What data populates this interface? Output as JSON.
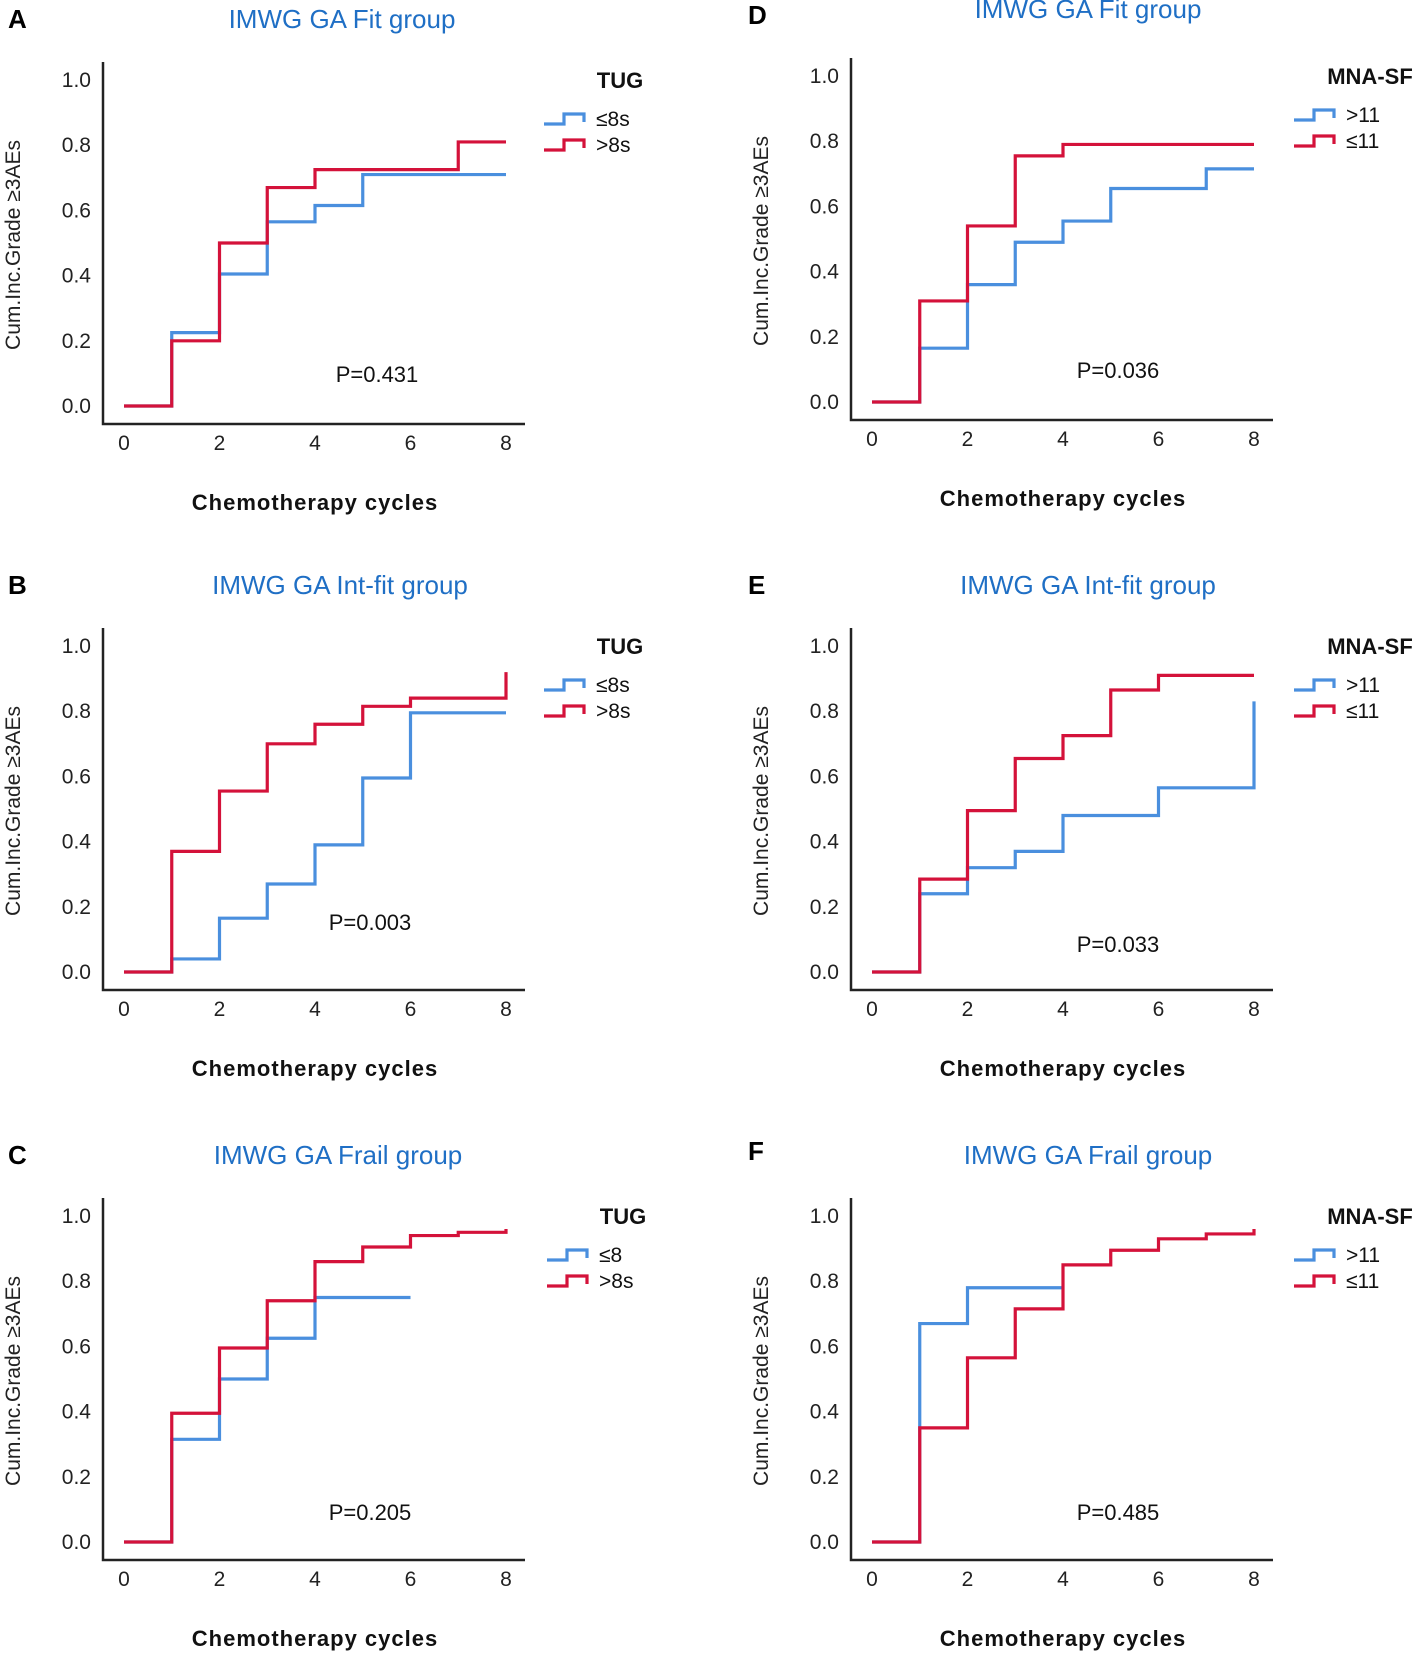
{
  "colors": {
    "blue": "#4a8fde",
    "red": "#d4123a",
    "title": "#1f6fc5"
  },
  "chart_data": [
    {
      "panel": "A",
      "type": "line",
      "step": true,
      "title": "IMWG GA Fit group",
      "xlabel": "Chemotherapy cycles",
      "ylabel": "Cum.Inc.Grade ≥3AEs",
      "xlim": [
        0,
        8
      ],
      "ylim": [
        0,
        1
      ],
      "xticks": [
        "0",
        "2",
        "4",
        "6",
        "8"
      ],
      "yticks": [
        "0.0",
        "0.2",
        "0.4",
        "0.6",
        "0.8",
        "1.0"
      ],
      "pvalue": "P=0.431",
      "legend": {
        "title": "TUG"
      },
      "series": [
        {
          "name": "≤8s",
          "color": "blue",
          "x": [
            0,
            1,
            2,
            3,
            4,
            5,
            8
          ],
          "y": [
            0,
            0.225,
            0.405,
            0.565,
            0.615,
            0.71,
            0.71
          ]
        },
        {
          "name": ">8s",
          "color": "red",
          "x": [
            0,
            1,
            2,
            3,
            4,
            7,
            8
          ],
          "y": [
            0,
            0.2,
            0.5,
            0.67,
            0.725,
            0.81,
            0.81
          ]
        }
      ]
    },
    {
      "panel": "B",
      "type": "line",
      "step": true,
      "title": "IMWG GA Int-fit group",
      "xlabel": "Chemotherapy cycles",
      "ylabel": "Cum.Inc.Grade ≥3AEs",
      "xlim": [
        0,
        8
      ],
      "ylim": [
        0,
        1
      ],
      "xticks": [
        "0",
        "2",
        "4",
        "6",
        "8"
      ],
      "yticks": [
        "0.0",
        "0.2",
        "0.4",
        "0.6",
        "0.8",
        "1.0"
      ],
      "pvalue": "P=0.003",
      "legend": {
        "title": "TUG"
      },
      "series": [
        {
          "name": "≤8s",
          "color": "blue",
          "x": [
            0,
            1,
            2,
            3,
            4,
            5,
            6,
            8
          ],
          "y": [
            0,
            0.04,
            0.165,
            0.27,
            0.39,
            0.595,
            0.795,
            0.795
          ]
        },
        {
          "name": ">8s",
          "color": "red",
          "x": [
            0,
            1,
            2,
            3,
            4,
            5,
            6,
            8,
            8
          ],
          "y": [
            0,
            0.37,
            0.555,
            0.7,
            0.76,
            0.815,
            0.84,
            0.84,
            0.92
          ]
        }
      ]
    },
    {
      "panel": "C",
      "type": "line",
      "step": true,
      "title": "IMWG GA Frail group",
      "xlabel": "Chemotherapy cycles",
      "ylabel": "Cum.Inc.Grade ≥3AEs",
      "xlim": [
        0,
        8
      ],
      "ylim": [
        0,
        1
      ],
      "xticks": [
        "0",
        "2",
        "4",
        "6",
        "8"
      ],
      "yticks": [
        "0.0",
        "0.2",
        "0.4",
        "0.6",
        "0.8",
        "1.0"
      ],
      "pvalue": "P=0.205",
      "legend": {
        "title": "TUG"
      },
      "series": [
        {
          "name": "≤8",
          "color": "blue",
          "x": [
            0,
            1,
            2,
            3,
            4,
            6
          ],
          "y": [
            0,
            0.315,
            0.5,
            0.625,
            0.75,
            0.75
          ]
        },
        {
          "name": ">8s",
          "color": "red",
          "x": [
            0,
            1,
            2,
            3,
            4,
            5,
            6,
            7,
            8
          ],
          "y": [
            0,
            0.395,
            0.595,
            0.74,
            0.86,
            0.905,
            0.94,
            0.95,
            0.96
          ]
        }
      ]
    },
    {
      "panel": "D",
      "type": "line",
      "step": true,
      "title": "IMWG GA Fit group",
      "xlabel": "Chemotherapy cycles",
      "ylabel": "Cum.Inc.Grade ≥3AEs",
      "xlim": [
        0,
        8
      ],
      "ylim": [
        0,
        1
      ],
      "xticks": [
        "0",
        "2",
        "4",
        "6",
        "8"
      ],
      "yticks": [
        "0.0",
        "0.2",
        "0.4",
        "0.6",
        "0.8",
        "1.0"
      ],
      "pvalue": "P=0.036",
      "legend": {
        "title": "MNA-SF"
      },
      "series": [
        {
          "name": ">11",
          "color": "blue",
          "x": [
            0,
            1,
            2,
            3,
            4,
            5,
            7,
            8
          ],
          "y": [
            0,
            0.165,
            0.36,
            0.49,
            0.555,
            0.655,
            0.715,
            0.715
          ]
        },
        {
          "name": "≤11",
          "color": "red",
          "x": [
            0,
            1,
            2,
            3,
            4,
            8
          ],
          "y": [
            0,
            0.31,
            0.54,
            0.755,
            0.79,
            0.79
          ]
        }
      ]
    },
    {
      "panel": "E",
      "type": "line",
      "step": true,
      "title": "IMWG GA Int-fit group",
      "xlabel": "Chemotherapy cycles",
      "ylabel": "Cum.Inc.Grade ≥3AEs",
      "xlim": [
        0,
        8
      ],
      "ylim": [
        0,
        1
      ],
      "xticks": [
        "0",
        "2",
        "4",
        "6",
        "8"
      ],
      "yticks": [
        "0.0",
        "0.2",
        "0.4",
        "0.6",
        "0.8",
        "1.0"
      ],
      "pvalue": "P=0.033",
      "legend": {
        "title": "MNA-SF"
      },
      "series": [
        {
          "name": ">11",
          "color": "blue",
          "x": [
            0,
            1,
            2,
            3,
            4,
            6,
            8,
            8
          ],
          "y": [
            0,
            0.24,
            0.32,
            0.37,
            0.48,
            0.565,
            0.565,
            0.83
          ]
        },
        {
          "name": "≤11",
          "color": "red",
          "x": [
            0,
            1,
            2,
            3,
            4,
            5,
            6,
            8
          ],
          "y": [
            0,
            0.285,
            0.495,
            0.655,
            0.725,
            0.865,
            0.91,
            0.91
          ]
        }
      ]
    },
    {
      "panel": "F",
      "type": "line",
      "step": true,
      "title": "IMWG GA Frail group",
      "xlabel": "Chemotherapy cycles",
      "ylabel": "Cum.Inc.Grade ≥3AEs",
      "xlim": [
        0,
        8
      ],
      "ylim": [
        0,
        1
      ],
      "xticks": [
        "0",
        "2",
        "4",
        "6",
        "8"
      ],
      "yticks": [
        "0.0",
        "0.2",
        "0.4",
        "0.6",
        "0.8",
        "1.0"
      ],
      "pvalue": "P=0.485",
      "legend": {
        "title": "MNA-SF"
      },
      "series": [
        {
          "name": ">11",
          "color": "blue",
          "x": [
            0,
            1,
            2,
            4
          ],
          "y": [
            0,
            0.67,
            0.78,
            0.78
          ]
        },
        {
          "name": "≤11",
          "color": "red",
          "x": [
            0,
            1,
            2,
            3,
            4,
            5,
            6,
            7,
            8
          ],
          "y": [
            0,
            0.35,
            0.565,
            0.715,
            0.85,
            0.895,
            0.93,
            0.945,
            0.96
          ]
        }
      ]
    }
  ]
}
